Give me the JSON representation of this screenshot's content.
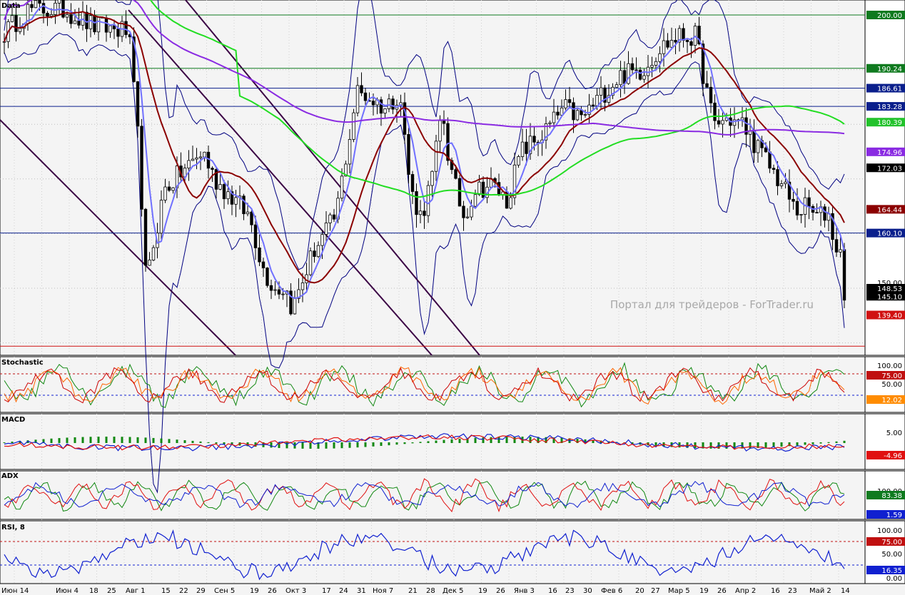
{
  "panels": {
    "price": {
      "title": "Data"
    },
    "stochastic": {
      "title": "Stochastic"
    },
    "macd": {
      "title": "MACD"
    },
    "adx": {
      "title": "ADX"
    },
    "rsi": {
      "title": "RSI, 8"
    }
  },
  "watermark": "Портал для трейдеров - ForTrader.ru",
  "price_scale": {
    "ticks": [
      "200.00",
      "190.24",
      "186.61",
      "183.28",
      "180.39",
      "174.96",
      "172.03",
      "164.44",
      "160.10",
      "150.00",
      "148.53",
      "145.10",
      "139.40"
    ],
    "badges": [
      {
        "text": "200.00",
        "bg": "#0f7a1f",
        "fg": "#ffffff"
      },
      {
        "text": "190.24",
        "bg": "#0f7a1f",
        "fg": "#ffffff"
      },
      {
        "text": "186.61",
        "bg": "#0a1f8c",
        "fg": "#ffffff"
      },
      {
        "text": "183.28",
        "bg": "#0a1f8c",
        "fg": "#ffffff"
      },
      {
        "text": "180.39",
        "bg": "#22c22b",
        "fg": "#ffffff"
      },
      {
        "text": "174.96",
        "bg": "#8a2be2",
        "fg": "#ffffff"
      },
      {
        "text": "172.03",
        "bg": "#000000",
        "fg": "#ffffff"
      },
      {
        "text": "164.44",
        "bg": "#8b0000",
        "fg": "#ffffff"
      },
      {
        "text": "160.10",
        "bg": "#0a1f8c",
        "fg": "#ffffff"
      },
      {
        "text": "148.53",
        "bg": "#000000",
        "fg": "#ffffff"
      },
      {
        "text": "145.10",
        "bg": "#000000",
        "fg": "#ffffff"
      },
      {
        "text": "139.40",
        "bg": "#d01010",
        "fg": "#ffffff"
      }
    ],
    "plain": [
      "150.00"
    ]
  },
  "stoch_scale": {
    "ticks": [
      "100.00",
      "75.00",
      "50.00",
      "12.02"
    ],
    "badges": [
      {
        "text": "75.00",
        "bg": "#c01010"
      },
      {
        "text": "12.02",
        "bg": "#ff8c00"
      }
    ]
  },
  "macd_scale": {
    "ticks": [
      "5.00",
      "-4.96"
    ],
    "badges": [
      {
        "text": "-4.96",
        "bg": "#e01010"
      }
    ]
  },
  "adx_scale": {
    "ticks": [
      "100.00",
      "83.38",
      "1.59"
    ],
    "badges": [
      {
        "text": "83.38",
        "bg": "#0f7a1f"
      },
      {
        "text": "1.59",
        "bg": "#1020d0"
      }
    ]
  },
  "rsi_scale": {
    "ticks": [
      "100.00",
      "75.00",
      "50.00",
      "16.35",
      "0.00"
    ],
    "badges": [
      {
        "text": "75.00",
        "bg": "#c01010"
      },
      {
        "text": "16.35",
        "bg": "#1020d0"
      }
    ]
  },
  "x_axis": [
    "Июн 14",
    "Июн 4",
    "18",
    "25",
    "Авг 1",
    "15",
    "22",
    "29",
    "Сен 5",
    "19",
    "26",
    "Окт 3",
    "17",
    "24",
    "31",
    "Ноя 7",
    "21",
    "28",
    "Дек 5",
    "19",
    "26",
    "Янв 3",
    "16",
    "23",
    "30",
    "Фев 6",
    "20",
    "27",
    "Мар 5",
    "19",
    "26",
    "Апр 2",
    "16",
    "23",
    "Май 2",
    "14"
  ],
  "colors": {
    "candle": "#000000",
    "bollinger": "#000080",
    "ma_fast": "#7070ff",
    "ma_mid": "#8b0000",
    "ma_green": "#22dd22",
    "ma_slow": "#8a2be2",
    "channel": "#3a0044",
    "hline_green": "#0f7a1f",
    "hline_blue": "#0a1f8c",
    "hline_red": "#d01010"
  }
}
